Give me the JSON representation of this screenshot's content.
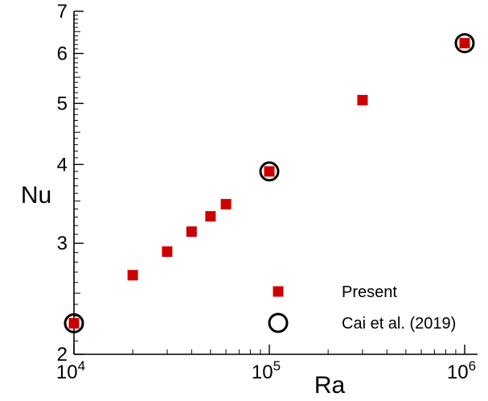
{
  "chart_data": {
    "type": "scatter",
    "xlabel": "Ra",
    "ylabel": "Nu",
    "x_scale": "log",
    "y_scale": "log",
    "xlim": [
      10000,
      1000000
    ],
    "ylim": [
      2,
      7
    ],
    "x_ticks": [
      {
        "value": 10000,
        "base": "10",
        "exp": "4"
      },
      {
        "value": 100000,
        "base": "10",
        "exp": "5"
      },
      {
        "value": 1000000,
        "base": "10",
        "exp": "6"
      }
    ],
    "y_ticks": [
      {
        "value": 2,
        "label": "2"
      },
      {
        "value": 3,
        "label": "3"
      },
      {
        "value": 4,
        "label": "4"
      },
      {
        "value": 5,
        "label": "5"
      },
      {
        "value": 6,
        "label": "6"
      },
      {
        "value": 7,
        "label": "7"
      }
    ],
    "grid": false,
    "legend_position": "bottom-right",
    "series": [
      {
        "name": "Present",
        "marker": "square",
        "color": "#cc0000",
        "x": [
          10000,
          20000,
          30000,
          40000,
          50000,
          60000,
          100000,
          300000,
          1000000
        ],
        "y": [
          2.24,
          2.67,
          2.91,
          3.13,
          3.31,
          3.46,
          3.9,
          5.06,
          6.23
        ]
      },
      {
        "name": "Cai et al. (2019)",
        "marker": "circle-open",
        "color": "#000000",
        "x": [
          10000,
          100000,
          1000000
        ],
        "y": [
          2.24,
          3.9,
          6.23
        ]
      }
    ]
  }
}
